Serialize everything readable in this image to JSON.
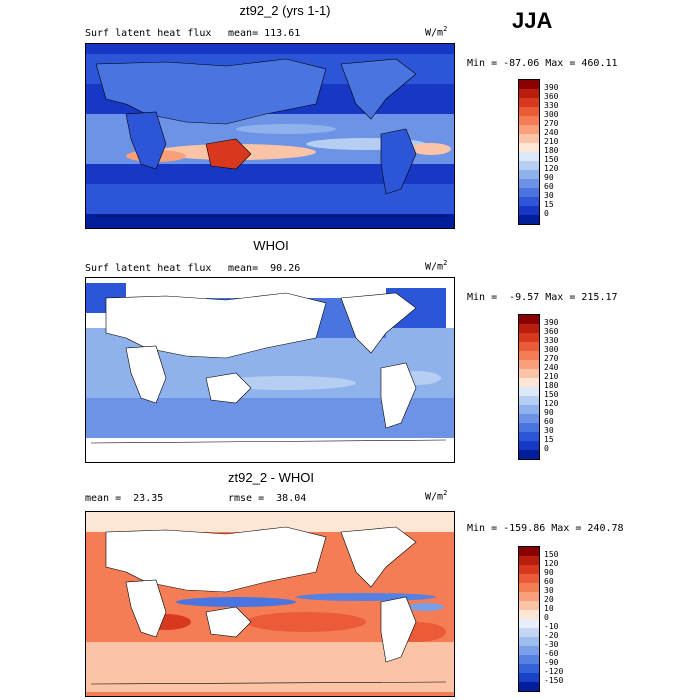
{
  "season": "JJA",
  "panels": [
    {
      "title": "zt92_2 (yrs 1-1)",
      "left_label": "Surf latent heat flux",
      "stat_label": "mean= 113.61",
      "units": "W/m",
      "units_exp": "2",
      "minmax": "Min = -87.06 Max = 460.11",
      "colorbar_ticks": [
        "390",
        "360",
        "330",
        "300",
        "270",
        "240",
        "210",
        "180",
        "150",
        "120",
        "90",
        "60",
        "30",
        "15",
        "0"
      ],
      "colorbar_colors": [
        "#8b0000",
        "#b81d0d",
        "#d8391e",
        "#ec5b37",
        "#f57d55",
        "#f9a07a",
        "#fcc4a6",
        "#fde6d4",
        "#dbe8f8",
        "#b5cef2",
        "#8fb2ec",
        "#6c93e5",
        "#4a74e0",
        "#2d55d8",
        "#1638c4",
        "#001e9c"
      ]
    },
    {
      "title": "WHOI",
      "left_label": "Surf latent heat flux",
      "stat_label": "mean=  90.26",
      "units": "W/m",
      "units_exp": "2",
      "minmax": "Min =  -9.57 Max = 215.17",
      "colorbar_ticks": [
        "390",
        "360",
        "330",
        "300",
        "270",
        "240",
        "210",
        "180",
        "150",
        "120",
        "90",
        "60",
        "30",
        "15",
        "0"
      ],
      "colorbar_colors": [
        "#8b0000",
        "#b81d0d",
        "#d8391e",
        "#ec5b37",
        "#f57d55",
        "#f9a07a",
        "#fcc4a6",
        "#fde6d4",
        "#dbe8f8",
        "#b5cef2",
        "#8fb2ec",
        "#6c93e5",
        "#4a74e0",
        "#2d55d8",
        "#1638c4",
        "#001e9c"
      ]
    },
    {
      "title": "zt92_2 - WHOI",
      "left_label": "mean =  23.35",
      "stat_label": "rmse =  38.04",
      "units": "W/m",
      "units_exp": "2",
      "minmax": "Min = -159.86 Max = 240.78",
      "colorbar_ticks": [
        "150",
        "120",
        "90",
        "60",
        "30",
        "20",
        "10",
        "0",
        "-10",
        "-20",
        "-30",
        "-60",
        "-90",
        "-120",
        "-150"
      ],
      "colorbar_colors": [
        "#8b0000",
        "#b81d0d",
        "#d8391e",
        "#ec5b37",
        "#f57d55",
        "#f9a07a",
        "#fcc4a6",
        "#fde6d4",
        "#e8eefa",
        "#c4d6f4",
        "#9fbcee",
        "#7a9ee8",
        "#5680e2",
        "#3462da",
        "#1a42c8",
        "#001e9c"
      ]
    }
  ],
  "chart_data": [
    {
      "type": "heatmap",
      "title": "zt92_2 (yrs 1-1)",
      "variable": "Surf latent heat flux",
      "units": "W/m2",
      "mean": 113.61,
      "min": -87.06,
      "max": 460.11,
      "levels": [
        0,
        15,
        30,
        60,
        90,
        120,
        150,
        180,
        210,
        240,
        270,
        300,
        330,
        360,
        390
      ]
    },
    {
      "type": "heatmap",
      "title": "WHOI",
      "variable": "Surf latent heat flux",
      "units": "W/m2",
      "mean": 90.26,
      "min": -9.57,
      "max": 215.17,
      "levels": [
        0,
        15,
        30,
        60,
        90,
        120,
        150,
        180,
        210,
        240,
        270,
        300,
        330,
        360,
        390
      ]
    },
    {
      "type": "heatmap",
      "title": "zt92_2 - WHOI",
      "units": "W/m2",
      "mean": 23.35,
      "rmse": 38.04,
      "min": -159.86,
      "max": 240.78,
      "levels": [
        -150,
        -120,
        -90,
        -60,
        -30,
        -20,
        -10,
        0,
        10,
        20,
        30,
        60,
        90,
        120,
        150
      ]
    }
  ]
}
